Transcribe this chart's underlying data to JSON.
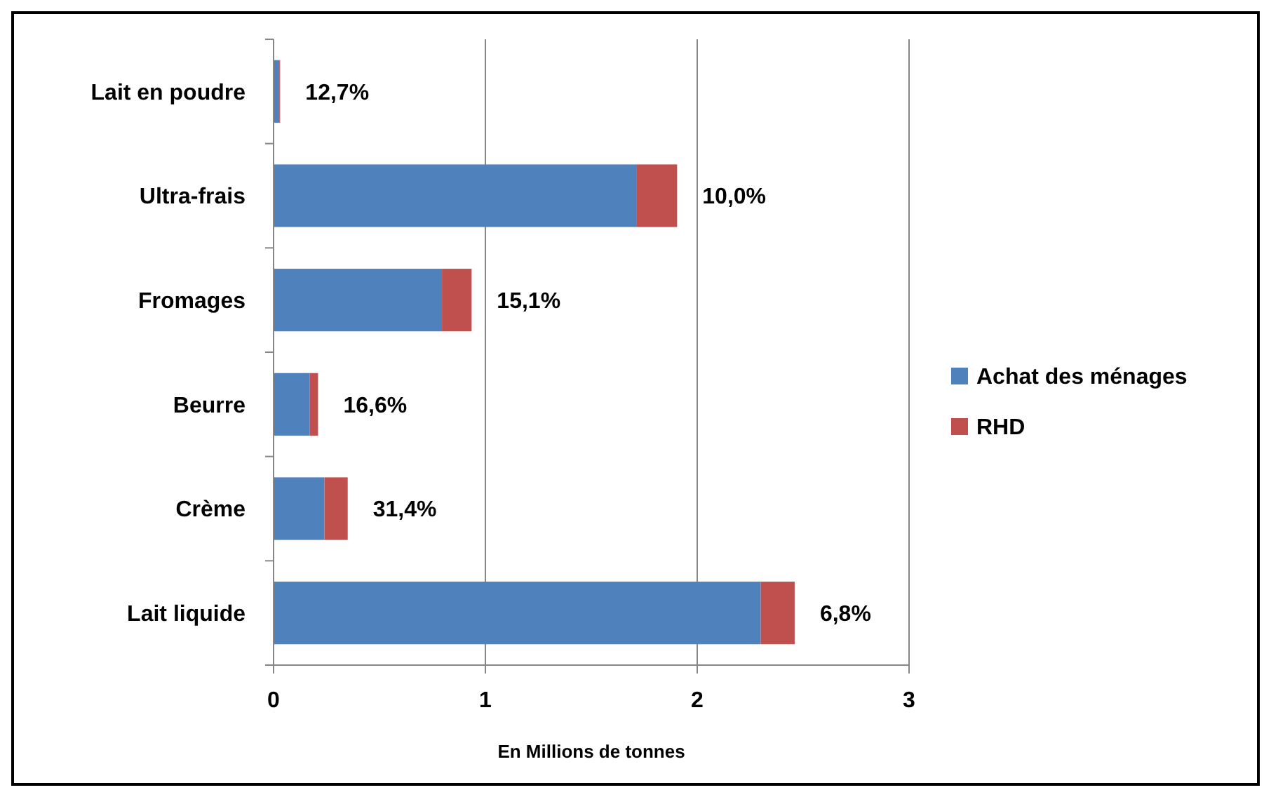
{
  "chart_data": {
    "type": "bar",
    "orientation": "horizontal",
    "stacked": true,
    "xlabel": "En Millions de tonnes",
    "categories": [
      "Lait en poudre",
      "Ultra-frais",
      "Fromages",
      "Beurre",
      "Crème",
      "Lait liquide"
    ],
    "series": [
      {
        "name": "Achat des ménages",
        "color": "#4f81bd",
        "values": [
          0.027,
          1.715,
          0.795,
          0.17,
          0.24,
          2.3
        ]
      },
      {
        "name": "RHD",
        "color": "#c0504d",
        "values": [
          0.004,
          0.19,
          0.14,
          0.04,
          0.11,
          0.16
        ]
      }
    ],
    "xlim": [
      0,
      3
    ],
    "xticks": [
      0,
      1,
      2,
      3
    ],
    "grid": "x",
    "legend": "right",
    "annotations": [
      {
        "text": "12,7%",
        "x": 0.031,
        "y": "Lait en poudre"
      },
      {
        "text": "10,0%",
        "x": 1.905,
        "y": "Ultra-frais"
      },
      {
        "text": "15,1%",
        "x": 0.935,
        "y": "Fromages"
      },
      {
        "text": "16,6%",
        "x": 0.21,
        "y": "Beurre"
      },
      {
        "text": "31,4%",
        "x": 0.35,
        "y": "Crème"
      },
      {
        "text": "6,8%",
        "x": 2.46,
        "y": "Lait liquide"
      }
    ]
  }
}
